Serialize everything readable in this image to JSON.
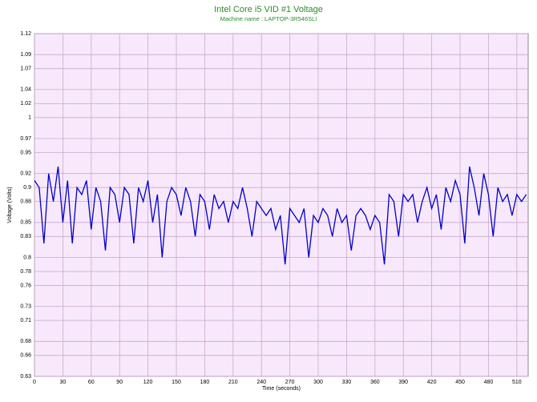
{
  "chart_data": {
    "type": "line",
    "title": "Intel Core i5 VID #1 Voltage",
    "subtitle": "Machine name : LAPTOP-3R546SLI",
    "x_label": "Time (seconds)",
    "y_label": "Voltage (Volts)",
    "x": [
      0,
      5,
      10,
      15,
      20,
      25,
      30,
      35,
      40,
      45,
      50,
      55,
      60,
      65,
      70,
      75,
      80,
      85,
      90,
      95,
      100,
      105,
      110,
      115,
      120,
      125,
      130,
      135,
      140,
      145,
      150,
      155,
      160,
      165,
      170,
      175,
      180,
      185,
      190,
      195,
      200,
      205,
      210,
      215,
      220,
      225,
      230,
      235,
      240,
      245,
      250,
      255,
      260,
      265,
      270,
      275,
      280,
      285,
      290,
      295,
      300,
      305,
      310,
      315,
      320,
      325,
      330,
      335,
      340,
      345,
      350,
      355,
      360,
      365,
      370,
      375,
      380,
      385,
      390,
      395,
      400,
      405,
      410,
      415,
      420,
      425,
      430,
      435,
      440,
      445,
      450,
      455,
      460,
      465,
      470,
      475,
      480,
      485,
      490,
      495,
      500,
      505,
      510,
      515,
      520
    ],
    "series": [
      {
        "name": "VID #1",
        "color": "#0000cc",
        "values": [
          0.91,
          0.9,
          0.82,
          0.92,
          0.88,
          0.93,
          0.85,
          0.91,
          0.82,
          0.9,
          0.89,
          0.91,
          0.84,
          0.9,
          0.88,
          0.81,
          0.9,
          0.89,
          0.85,
          0.9,
          0.89,
          0.82,
          0.9,
          0.88,
          0.91,
          0.85,
          0.89,
          0.8,
          0.88,
          0.9,
          0.89,
          0.86,
          0.9,
          0.88,
          0.83,
          0.89,
          0.88,
          0.84,
          0.89,
          0.87,
          0.88,
          0.85,
          0.88,
          0.87,
          0.9,
          0.87,
          0.83,
          0.88,
          0.87,
          0.86,
          0.87,
          0.84,
          0.86,
          0.79,
          0.87,
          0.86,
          0.85,
          0.87,
          0.8,
          0.86,
          0.85,
          0.87,
          0.86,
          0.83,
          0.87,
          0.85,
          0.86,
          0.81,
          0.86,
          0.87,
          0.86,
          0.84,
          0.86,
          0.85,
          0.79,
          0.89,
          0.88,
          0.83,
          0.89,
          0.88,
          0.89,
          0.85,
          0.88,
          0.9,
          0.87,
          0.89,
          0.84,
          0.9,
          0.88,
          0.91,
          0.89,
          0.82,
          0.93,
          0.9,
          0.86,
          0.92,
          0.89,
          0.83,
          0.9,
          0.88,
          0.89,
          0.86,
          0.89,
          0.88,
          0.89
        ]
      }
    ],
    "xlim": [
      0,
      522
    ],
    "xticks": [
      0,
      30,
      60,
      90,
      120,
      150,
      180,
      210,
      240,
      270,
      300,
      330,
      360,
      390,
      420,
      450,
      480,
      510
    ],
    "ylim": [
      0.63,
      1.12
    ],
    "yticks": [
      0.63,
      0.66,
      0.68,
      0.71,
      0.73,
      0.76,
      0.78,
      0.8,
      0.83,
      0.85,
      0.88,
      0.9,
      0.92,
      0.95,
      0.97,
      1.0,
      1.02,
      1.04,
      1.07,
      1.09,
      1.12
    ],
    "grid": true
  }
}
